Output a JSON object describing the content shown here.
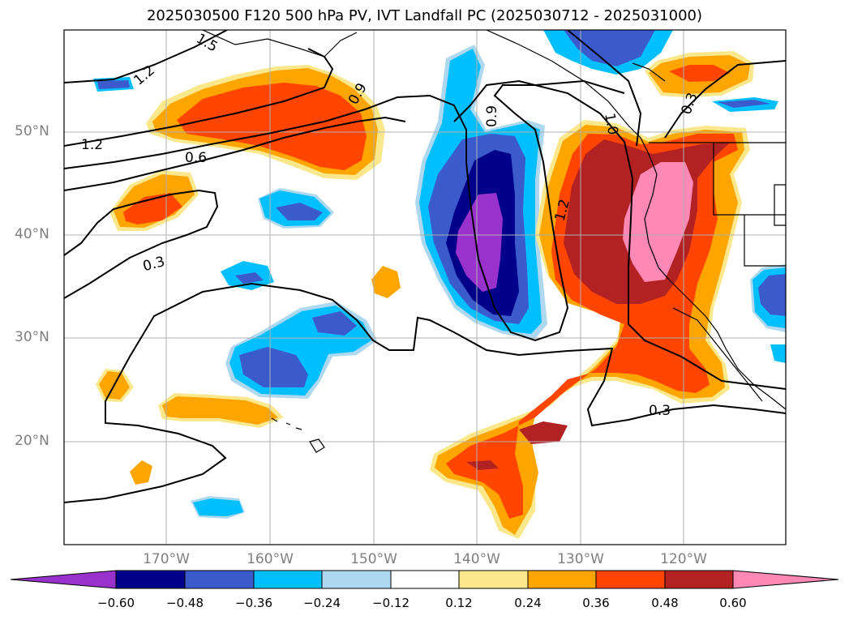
{
  "title": "2025030500 F120 500 hPa PV, IVT Landfall PC (2025030712 - 2025031000)",
  "lat_labels": [
    "50°N",
    "40°N",
    "30°N",
    "20°N"
  ],
  "lon_labels": [
    "170°W",
    "160°W",
    "150°W",
    "140°W",
    "130°W",
    "120°W"
  ],
  "contour_labels": [
    "1.5",
    "1.2",
    "1.2",
    "0.9",
    "0.6",
    "0.3",
    "0.9",
    "1.2",
    "1.0",
    "0.3",
    "0.3",
    "0.9"
  ],
  "colorbar": {
    "ticks": [
      "−0.60",
      "−0.48",
      "−0.36",
      "−0.24",
      "−0.12",
      "0.12",
      "0.24",
      "0.36",
      "0.48",
      "0.60"
    ],
    "colors": [
      "#9932cc",
      "#00008b",
      "#3b5bcc",
      "#00bfff",
      "#add8f0",
      "#ffffff",
      "#fbe88c",
      "#ffa500",
      "#ff4500",
      "#b22222",
      "#ff88b4"
    ]
  },
  "map": {
    "projection": "lat-lon",
    "extent_lon": [
      -180,
      -110
    ],
    "extent_lat": [
      10,
      60
    ],
    "grid": true
  }
}
